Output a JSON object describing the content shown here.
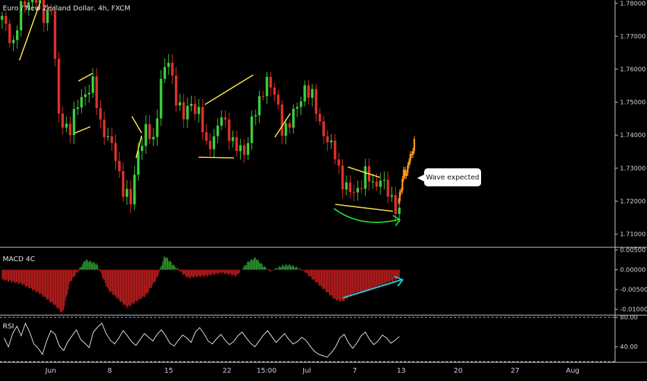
{
  "header": {
    "title": "Euro / New Zealand Dollar, 4h, FXCM"
  },
  "panels": {
    "macd_label": "MACD 4C",
    "rsi_label": "RSI"
  },
  "annotation": {
    "text": "Wave expected"
  },
  "colors": {
    "up": "#3ccf3c",
    "down": "#e0302a",
    "macd_up": "#2e9e2e",
    "macd_down": "#c41e1e",
    "pattern": "#ffe44d",
    "forecast": "#ff9a1f",
    "support_arc": "#27d83b",
    "divergence": "#29c8dd",
    "rsi": "#e6e6e6",
    "grid": "#2a2a2a"
  },
  "chart_data": [
    {
      "type": "candlestick",
      "title": "Euro / New Zealand Dollar, 4h, FXCM",
      "y_axis": {
        "ticks": [
          "1.78000",
          "1.77000",
          "1.76000",
          "1.75000",
          "1.74000",
          "1.73000",
          "1.72000",
          "1.71000"
        ],
        "ylim": [
          1.706,
          1.781
        ]
      },
      "x_axis": {
        "ticks": [
          "Jun",
          "8",
          "15",
          "22",
          "15:00",
          "Jul",
          "7",
          "13",
          "20",
          "27",
          "Aug"
        ]
      },
      "price_path": [
        [
          0,
          1.775
        ],
        [
          3,
          1.768
        ],
        [
          5,
          1.778
        ],
        [
          8,
          1.783
        ],
        [
          11,
          1.776
        ],
        [
          13,
          1.779
        ],
        [
          15,
          1.745
        ],
        [
          18,
          1.742
        ],
        [
          21,
          1.752
        ],
        [
          24,
          1.755
        ],
        [
          26,
          1.744
        ],
        [
          28,
          1.739
        ],
        [
          30,
          1.733
        ],
        [
          32,
          1.724
        ],
        [
          34,
          1.719
        ],
        [
          36,
          1.736
        ],
        [
          38,
          1.741
        ],
        [
          40,
          1.738
        ],
        [
          42,
          1.757
        ],
        [
          44,
          1.762
        ],
        [
          46,
          1.752
        ],
        [
          48,
          1.745
        ],
        [
          50,
          1.75
        ],
        [
          52,
          1.747
        ],
        [
          54,
          1.736
        ],
        [
          56,
          1.74
        ],
        [
          58,
          1.745
        ],
        [
          60,
          1.741
        ],
        [
          62,
          1.736
        ],
        [
          64,
          1.734
        ],
        [
          66,
          1.745
        ],
        [
          68,
          1.749
        ],
        [
          70,
          1.758
        ],
        [
          72,
          1.752
        ],
        [
          74,
          1.742
        ],
        [
          76,
          1.744
        ],
        [
          78,
          1.748
        ],
        [
          80,
          1.755
        ],
        [
          82,
          1.751
        ],
        [
          84,
          1.744
        ],
        [
          86,
          1.738
        ],
        [
          88,
          1.734
        ],
        [
          90,
          1.726
        ],
        [
          92,
          1.722
        ],
        [
          94,
          1.724
        ],
        [
          96,
          1.728
        ],
        [
          98,
          1.725
        ],
        [
          100,
          1.727
        ],
        [
          102,
          1.722
        ],
        [
          104,
          1.719
        ],
        [
          105,
          1.717
        ]
      ],
      "forecast_path": [
        [
          105,
          1.72
        ],
        [
          106,
          1.724
        ],
        [
          107,
          1.729
        ],
        [
          108,
          1.728
        ],
        [
          109,
          1.733
        ],
        [
          110,
          1.734
        ],
        [
          111,
          1.738
        ]
      ],
      "annotation": "Wave expected"
    },
    {
      "type": "bar",
      "title": "MACD 4C",
      "y_axis": {
        "ticks": [
          "0.00500",
          "0.00000",
          "-0.00500",
          "-0.01000"
        ],
        "ylim": [
          -0.0115,
          0.0055
        ]
      },
      "histogram_path": [
        [
          0,
          -0.0025
        ],
        [
          5,
          -0.0035
        ],
        [
          10,
          -0.006
        ],
        [
          14,
          -0.009
        ],
        [
          16,
          -0.011
        ],
        [
          18,
          -0.003
        ],
        [
          20,
          -0.0005
        ],
        [
          22,
          0.0025
        ],
        [
          25,
          0.0015
        ],
        [
          28,
          -0.005
        ],
        [
          33,
          -0.0095
        ],
        [
          38,
          -0.0065
        ],
        [
          41,
          -0.002
        ],
        [
          43,
          0.0035
        ],
        [
          46,
          0.0005
        ],
        [
          49,
          -0.002
        ],
        [
          54,
          -0.0015
        ],
        [
          58,
          -0.0008
        ],
        [
          62,
          -0.0015
        ],
        [
          65,
          0.002
        ],
        [
          67,
          0.003
        ],
        [
          69,
          0.001
        ],
        [
          71,
          -0.0004
        ],
        [
          74,
          0.001
        ],
        [
          76,
          0.0012
        ],
        [
          78,
          0.0005
        ],
        [
          80,
          -0.0005
        ],
        [
          84,
          -0.004
        ],
        [
          88,
          -0.0075
        ],
        [
          90,
          -0.008
        ],
        [
          93,
          -0.006
        ],
        [
          96,
          -0.0055
        ],
        [
          100,
          -0.004
        ],
        [
          104,
          -0.0025
        ],
        [
          105,
          -0.002
        ]
      ]
    },
    {
      "type": "line",
      "title": "RSI",
      "y_axis": {
        "ticks": [
          "80.00",
          "40.00"
        ],
        "ylim": [
          20,
          82
        ],
        "bands": [
          80,
          20
        ]
      },
      "series": [
        {
          "values": [
            52,
            40,
            58,
            68,
            55,
            72,
            60,
            44,
            38,
            30,
            48,
            62,
            57,
            41,
            35,
            47,
            55,
            63,
            50,
            45,
            39,
            60,
            67,
            72,
            58,
            49,
            44,
            52,
            62,
            55,
            47,
            42,
            50,
            58,
            53,
            48,
            57,
            63,
            55,
            45,
            41,
            49,
            56,
            52,
            46,
            60,
            66,
            58,
            48,
            44,
            51,
            57,
            49,
            43,
            47,
            55,
            60,
            52,
            45,
            40,
            48,
            56,
            62,
            54,
            46,
            52,
            58,
            50,
            44,
            47,
            53,
            49,
            41,
            34,
            30,
            28,
            26,
            32,
            40,
            52,
            57,
            46,
            38,
            45,
            55,
            60,
            50,
            43,
            48,
            56,
            52,
            45,
            49,
            54
          ]
        }
      ]
    }
  ]
}
